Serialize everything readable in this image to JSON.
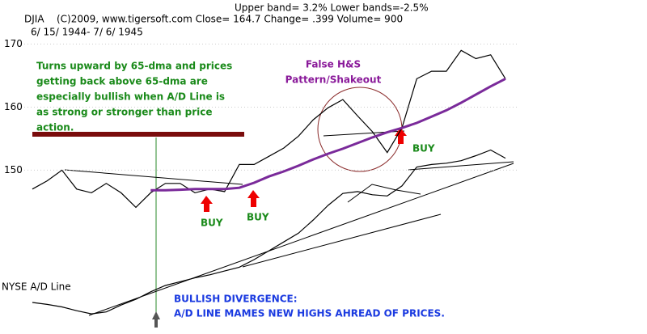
{
  "chart_data": {
    "type": "line",
    "title": "(C)2009, www.tigersoft.com    Close=  164.7  Change= .399 Volume= 900",
    "subtitle": "Upper band= 3.2%  Lower bands=-2.5%",
    "date_range": "6/ 15/ 1944- 7/ 6/ 1945",
    "categories": [
      null,
      null,
      null,
      null,
      null,
      null,
      null,
      null,
      null,
      null,
      null,
      null,
      null,
      null,
      null,
      null,
      null,
      null,
      null,
      null,
      null,
      null,
      null,
      null,
      null,
      null,
      null,
      null,
      null,
      null,
      null,
      null,
      null
    ],
    "series": [
      {
        "name": "DJIA",
        "color": "#000000",
        "values": [
          147.0,
          148.3,
          150.0,
          147.0,
          146.4,
          147.9,
          146.4,
          144.1,
          146.4,
          147.9,
          147.9,
          146.4,
          147.0,
          146.6,
          150.9,
          150.9,
          152.2,
          153.5,
          155.4,
          158.0,
          159.9,
          161.2,
          158.6,
          156.1,
          152.8,
          156.7,
          164.5,
          165.7,
          165.7,
          169.0,
          167.7,
          168.3,
          164.5
        ]
      },
      {
        "name": "NYSE A/D Line",
        "color": "#000000",
        "values": [
          129.0,
          128.7,
          128.3,
          127.7,
          127.2,
          127.5,
          128.6,
          129.5,
          130.7,
          131.7,
          132.3,
          132.9,
          133.4,
          134.0,
          134.6,
          135.8,
          137.2,
          138.6,
          140.0,
          142.1,
          144.4,
          146.3,
          146.6,
          146.1,
          145.9,
          147.5,
          150.5,
          150.9,
          151.1,
          151.5,
          152.3,
          153.2,
          151.9
        ]
      },
      {
        "color": "#7a2a9a",
        "values": [
          null,
          null,
          null,
          null,
          null,
          null,
          null,
          null,
          146.8,
          146.8,
          146.9,
          147.0,
          147.0,
          147.0,
          147.2,
          148.0,
          149.0,
          149.8,
          150.7,
          151.7,
          152.6,
          153.4,
          154.3,
          155.2,
          156.0,
          156.7,
          157.5,
          158.5,
          159.5,
          160.7,
          162.0,
          163.3,
          164.5
        ]
      }
    ],
    "ylim": [
      124,
      177
    ],
    "yticks": [
      150,
      160,
      170
    ],
    "grid": true,
    "annotations": {
      "note": [
        "Turns upward by 65-dma and prices",
        "getting back above 65-dma are",
        "especially bullish when A/D Line is",
        "as strong or stronger than price",
        "action."
      ],
      "hs": [
        "False H&S",
        "Pattern/Shakeout"
      ],
      "buy": "BUY",
      "divergence": [
        "BULLISH DIVERGENCE:",
        "A/D LINE MAMES NEW HIGHS AHREAD OF PRICES."
      ]
    }
  }
}
